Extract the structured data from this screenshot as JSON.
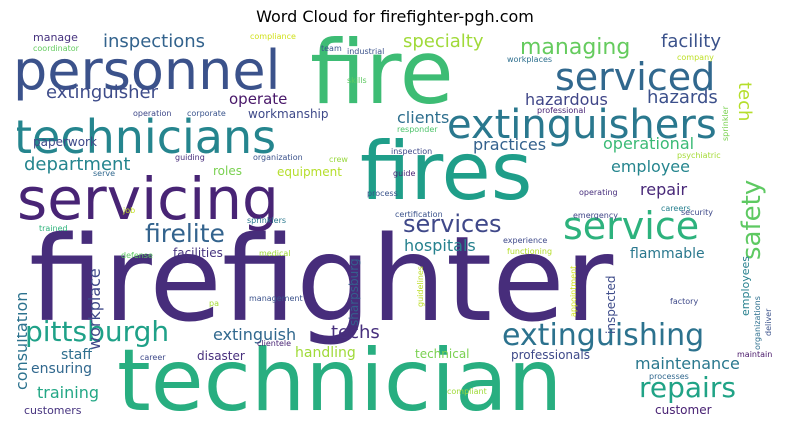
{
  "title": "Word Cloud for firefighter-pgh.com",
  "words": [
    {
      "text": "firefighter",
      "color": "#472d7b"
    },
    {
      "text": "technician",
      "color": "#28ae80"
    },
    {
      "text": "fire",
      "color": "#3dbc74"
    },
    {
      "text": "fires",
      "color": "#1f9e89"
    },
    {
      "text": "personnel",
      "color": "#3b528b"
    },
    {
      "text": "servicing",
      "color": "#482475"
    },
    {
      "text": "technicians",
      "color": "#25858e"
    },
    {
      "text": "extinguishers",
      "color": "#2a788e"
    },
    {
      "text": "serviced",
      "color": "#31688e"
    },
    {
      "text": "service",
      "color": "#2db27d"
    },
    {
      "text": "extinguishing",
      "color": "#2c728e"
    },
    {
      "text": "pittsburgh",
      "color": "#1fa188"
    },
    {
      "text": "repairs",
      "color": "#20a386"
    },
    {
      "text": "services",
      "color": "#3f4889"
    },
    {
      "text": "firelite",
      "color": "#33638d"
    },
    {
      "text": "safety",
      "color": "#5ec962"
    },
    {
      "text": "managing",
      "color": "#65cb5e"
    },
    {
      "text": "specialty",
      "color": "#a0da39"
    },
    {
      "text": "inspections",
      "color": "#33638d"
    },
    {
      "text": "facility",
      "color": "#3b528b"
    },
    {
      "text": "extinguisher",
      "color": "#3e4c8a"
    },
    {
      "text": "hazardous",
      "color": "#404688"
    },
    {
      "text": "hazards",
      "color": "#3c508b"
    },
    {
      "text": "operate",
      "color": "#481769"
    },
    {
      "text": "tech",
      "color": "#b5de2b"
    },
    {
      "text": "department",
      "color": "#25858e"
    },
    {
      "text": "practices",
      "color": "#34618d"
    },
    {
      "text": "operational",
      "color": "#3aba76"
    },
    {
      "text": "employee",
      "color": "#25858e"
    },
    {
      "text": "clients",
      "color": "#2e6f8e"
    },
    {
      "text": "workmanship",
      "color": "#3e4989"
    },
    {
      "text": "repair",
      "color": "#482878"
    },
    {
      "text": "hospitals",
      "color": "#26818e"
    },
    {
      "text": "flammable",
      "color": "#2a788e"
    },
    {
      "text": "facilities",
      "color": "#46337f"
    },
    {
      "text": "consultation",
      "color": "#2c728e"
    },
    {
      "text": "workplace",
      "color": "#3f4889"
    },
    {
      "text": "techs",
      "color": "#472f7d"
    },
    {
      "text": "extinguish",
      "color": "#31688e"
    },
    {
      "text": "maintenance",
      "color": "#2a788e"
    },
    {
      "text": "handling",
      "color": "#a0da39"
    },
    {
      "text": "staff",
      "color": "#2e6f8e"
    },
    {
      "text": "disaster",
      "color": "#472f7d"
    },
    {
      "text": "ensuring",
      "color": "#31688e"
    },
    {
      "text": "training",
      "color": "#22a785"
    },
    {
      "text": "technical",
      "color": "#7ad151"
    },
    {
      "text": "professionals",
      "color": "#3e4989"
    },
    {
      "text": "customer",
      "color": "#482173"
    },
    {
      "text": "customers",
      "color": "#46337f"
    },
    {
      "text": "sharpsburg",
      "color": "#355f8d"
    },
    {
      "text": "inspected",
      "color": "#3e4c8a"
    },
    {
      "text": "employees",
      "color": "#27808e"
    },
    {
      "text": "equipment",
      "color": "#b5de2b"
    },
    {
      "text": "roles",
      "color": "#7ad151"
    },
    {
      "text": "paperwork",
      "color": "#3e4989"
    },
    {
      "text": "manage",
      "color": "#46327e"
    },
    {
      "text": "coordinator",
      "color": "#63cb5f"
    },
    {
      "text": "compliance",
      "color": "#d0e11c"
    },
    {
      "text": "team",
      "color": "#39568c"
    },
    {
      "text": "industrial",
      "color": "#3b528b"
    },
    {
      "text": "workplaces",
      "color": "#2e6f8e"
    },
    {
      "text": "company",
      "color": "#bddf26"
    },
    {
      "text": "skills",
      "color": "#5ec962"
    },
    {
      "text": "professional",
      "color": "#482475"
    },
    {
      "text": "sprinkler",
      "color": "#7ad151"
    },
    {
      "text": "operation",
      "color": "#3f4889"
    },
    {
      "text": "corporate",
      "color": "#3a548c"
    },
    {
      "text": "responder",
      "color": "#4ec36b"
    },
    {
      "text": "psychiatric",
      "color": "#a5db36"
    },
    {
      "text": "guiding",
      "color": "#472d7b"
    },
    {
      "text": "organization",
      "color": "#3b528b"
    },
    {
      "text": "crew",
      "color": "#98d83e"
    },
    {
      "text": "inspection",
      "color": "#3e4989"
    },
    {
      "text": "guide",
      "color": "#482475"
    },
    {
      "text": "serve",
      "color": "#31688e"
    },
    {
      "text": "process",
      "color": "#3a548c"
    },
    {
      "text": "operating",
      "color": "#472f7d"
    },
    {
      "text": "job",
      "color": "#c2df23"
    },
    {
      "text": "sprinklers",
      "color": "#2a788e"
    },
    {
      "text": "certification",
      "color": "#3b528b"
    },
    {
      "text": "emergency",
      "color": "#404688"
    },
    {
      "text": "careers",
      "color": "#277f8e"
    },
    {
      "text": "security",
      "color": "#3e4989"
    },
    {
      "text": "trained",
      "color": "#2fb47c"
    },
    {
      "text": "experience",
      "color": "#3e4989"
    },
    {
      "text": "defense",
      "color": "#5ec962"
    },
    {
      "text": "medical",
      "color": "#a0da39"
    },
    {
      "text": "functioning",
      "color": "#b5de2b"
    },
    {
      "text": "guidelines",
      "color": "#bddf26"
    },
    {
      "text": "appointment",
      "color": "#d0e11c"
    },
    {
      "text": "deliver",
      "color": "#3b528b"
    },
    {
      "text": "organizations",
      "color": "#2e6f8e"
    },
    {
      "text": "pa",
      "color": "#a5db36"
    },
    {
      "text": "management",
      "color": "#3b528b"
    },
    {
      "text": "factory",
      "color": "#3e4989"
    },
    {
      "text": "clientele",
      "color": "#482475"
    },
    {
      "text": "career",
      "color": "#3e4989"
    },
    {
      "text": "maintain",
      "color": "#481769"
    },
    {
      "text": "processes",
      "color": "#31688e"
    },
    {
      "text": "compliant",
      "color": "#a0da39"
    }
  ]
}
